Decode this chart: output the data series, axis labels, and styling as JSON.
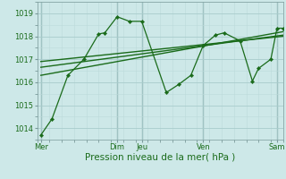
{
  "bg_color": "#cde8e8",
  "grid_color_major": "#a8cccc",
  "grid_color_minor": "#bcdada",
  "line_color": "#1a6b1a",
  "xlabel": "Pression niveau de la mer( hPa )",
  "xlabel_fontsize": 7.5,
  "ylim": [
    1013.5,
    1019.5
  ],
  "yticks": [
    1014,
    1015,
    1016,
    1017,
    1018,
    1019
  ],
  "tick_fontsize": 6.0,
  "xlim": [
    0,
    20
  ],
  "xtick_positions": [
    0.3,
    6.5,
    8.5,
    13.5,
    19.5
  ],
  "xtick_labels": [
    "Mer",
    "Dim",
    "Jeu",
    "Ven",
    "Sam"
  ],
  "day_vlines": [
    0.3,
    6.5,
    8.5,
    13.5,
    19.5
  ],
  "series1_x": [
    0.3,
    1.2,
    2.5,
    3.8,
    5.0,
    5.5,
    6.5,
    7.5,
    8.5,
    10.5,
    11.5,
    12.5,
    13.5,
    14.5,
    15.2,
    16.5,
    17.5,
    18.0,
    19.0,
    19.5,
    20.0
  ],
  "series1_y": [
    1013.7,
    1014.4,
    1016.3,
    1017.0,
    1018.1,
    1018.15,
    1018.85,
    1018.65,
    1018.65,
    1015.55,
    1015.9,
    1016.3,
    1017.6,
    1018.05,
    1018.15,
    1017.8,
    1016.05,
    1016.6,
    1017.0,
    1018.35,
    1018.35
  ],
  "trend1_x": [
    0.3,
    20.0
  ],
  "trend1_y": [
    1016.3,
    1018.2
  ],
  "trend2_x": [
    0.3,
    20.0
  ],
  "trend2_y": [
    1016.65,
    1018.05
  ],
  "trend3_x": [
    0.3,
    20.0
  ],
  "trend3_y": [
    1016.9,
    1018.0
  ]
}
